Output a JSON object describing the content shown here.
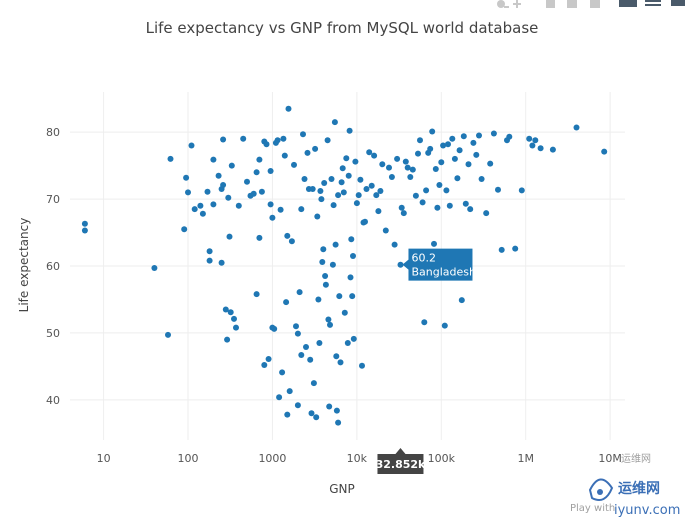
{
  "chart_data": {
    "type": "scatter",
    "title": "Life expectancy vs GNP from MySQL world database",
    "xlabel": "GNP",
    "ylabel": "Life expectancy",
    "x_scale": "log",
    "xlim": [
      4,
      15000000
    ],
    "ylim": [
      34,
      86
    ],
    "x_ticks": [
      {
        "value": 10,
        "label": "10"
      },
      {
        "value": 100,
        "label": "100"
      },
      {
        "value": 1000,
        "label": "1000"
      },
      {
        "value": 10000,
        "label": "10k"
      },
      {
        "value": 100000,
        "label": "100k"
      },
      {
        "value": 1000000,
        "label": "1M"
      },
      {
        "value": 10000000,
        "label": "10M"
      }
    ],
    "y_ticks": [
      40,
      50,
      60,
      70,
      80
    ],
    "grid": true,
    "color": "#1f77b4",
    "points": [
      [
        6,
        66.3
      ],
      [
        6,
        65.3
      ],
      [
        40,
        59.7
      ],
      [
        58,
        49.7
      ],
      [
        62,
        76
      ],
      [
        90,
        65.5
      ],
      [
        95,
        73.2
      ],
      [
        100,
        71
      ],
      [
        110,
        78
      ],
      [
        120,
        68.5
      ],
      [
        140,
        69
      ],
      [
        150,
        67.8
      ],
      [
        170,
        71.1
      ],
      [
        180,
        62.2
      ],
      [
        180,
        60.8
      ],
      [
        200,
        75.9
      ],
      [
        200,
        69.2
      ],
      [
        230,
        73.5
      ],
      [
        250,
        60.5
      ],
      [
        250,
        71.5
      ],
      [
        260,
        78.9
      ],
      [
        260,
        72.1
      ],
      [
        280,
        53.5
      ],
      [
        290,
        49
      ],
      [
        300,
        70.2
      ],
      [
        310,
        64.4
      ],
      [
        320,
        53.1
      ],
      [
        330,
        75
      ],
      [
        350,
        52.1
      ],
      [
        370,
        50.8
      ],
      [
        400,
        69
      ],
      [
        450,
        79
      ],
      [
        500,
        72.6
      ],
      [
        550,
        70.5
      ],
      [
        600,
        70.8
      ],
      [
        650,
        55.8
      ],
      [
        650,
        74
      ],
      [
        700,
        64.2
      ],
      [
        700,
        75.9
      ],
      [
        750,
        71.1
      ],
      [
        800,
        78.6
      ],
      [
        800,
        45.2
      ],
      [
        850,
        78.2
      ],
      [
        900,
        46.1
      ],
      [
        950,
        74.2
      ],
      [
        950,
        69.2
      ],
      [
        1000,
        50.8
      ],
      [
        1000,
        67.2
      ],
      [
        1050,
        50.6
      ],
      [
        1100,
        78.4
      ],
      [
        1150,
        78.8
      ],
      [
        1200,
        40.4
      ],
      [
        1250,
        68.4
      ],
      [
        1300,
        44.1
      ],
      [
        1350,
        79
      ],
      [
        1400,
        76.5
      ],
      [
        1450,
        54.6
      ],
      [
        1500,
        64.5
      ],
      [
        1500,
        37.8
      ],
      [
        1550,
        83.5
      ],
      [
        1600,
        41.3
      ],
      [
        1700,
        63.7
      ],
      [
        1800,
        75.1
      ],
      [
        1900,
        51
      ],
      [
        2000,
        39.2
      ],
      [
        2000,
        49.9
      ],
      [
        2100,
        56.1
      ],
      [
        2200,
        68.5
      ],
      [
        2200,
        46.7
      ],
      [
        2300,
        79.7
      ],
      [
        2400,
        73
      ],
      [
        2500,
        47.9
      ],
      [
        2600,
        76.9
      ],
      [
        2700,
        71.5
      ],
      [
        2800,
        46
      ],
      [
        2900,
        38
      ],
      [
        3000,
        71.5
      ],
      [
        3100,
        42.5
      ],
      [
        3200,
        77.5
      ],
      [
        3300,
        37.4
      ],
      [
        3400,
        67.4
      ],
      [
        3500,
        55
      ],
      [
        3600,
        48.5
      ],
      [
        3700,
        71.2
      ],
      [
        3800,
        70
      ],
      [
        3900,
        60.6
      ],
      [
        4000,
        62.5
      ],
      [
        4100,
        72.4
      ],
      [
        4200,
        58.5
      ],
      [
        4300,
        57.2
      ],
      [
        4500,
        78.8
      ],
      [
        4600,
        52
      ],
      [
        4700,
        39
      ],
      [
        4800,
        51.2
      ],
      [
        5000,
        73
      ],
      [
        5200,
        60.2
      ],
      [
        5300,
        69.1
      ],
      [
        5500,
        81.5
      ],
      [
        5600,
        63.2
      ],
      [
        5700,
        46.5
      ],
      [
        5800,
        38.4
      ],
      [
        6000,
        36.6
      ],
      [
        6000,
        70.6
      ],
      [
        6200,
        55.5
      ],
      [
        6400,
        45.6
      ],
      [
        6600,
        72.5
      ],
      [
        6800,
        74.6
      ],
      [
        7000,
        71
      ],
      [
        7200,
        53
      ],
      [
        7500,
        76.1
      ],
      [
        7800,
        48.5
      ],
      [
        8000,
        73.5
      ],
      [
        8200,
        80.2
      ],
      [
        8400,
        58.3
      ],
      [
        8600,
        64
      ],
      [
        8800,
        55.5
      ],
      [
        9000,
        61.5
      ],
      [
        9200,
        49.1
      ],
      [
        9600,
        75.6
      ],
      [
        10000,
        69.4
      ],
      [
        10500,
        70.6
      ],
      [
        11000,
        72.9
      ],
      [
        11500,
        45.1
      ],
      [
        12000,
        66.5
      ],
      [
        12500,
        66.6
      ],
      [
        13000,
        71.5
      ],
      [
        14000,
        77
      ],
      [
        15000,
        72
      ],
      [
        16000,
        76.5
      ],
      [
        17000,
        70.6
      ],
      [
        18000,
        68.2
      ],
      [
        19000,
        71.2
      ],
      [
        20000,
        75.2
      ],
      [
        22000,
        65.3
      ],
      [
        24000,
        74.7
      ],
      [
        26000,
        73.3
      ],
      [
        28000,
        63.2
      ],
      [
        30000,
        76
      ],
      [
        32852,
        60.2
      ],
      [
        34000,
        68.7
      ],
      [
        36000,
        67.9
      ],
      [
        38000,
        75.6
      ],
      [
        40000,
        74.7
      ],
      [
        43000,
        73.3
      ],
      [
        46000,
        74.4
      ],
      [
        50000,
        70.5
      ],
      [
        53000,
        76.8
      ],
      [
        56000,
        78.8
      ],
      [
        60000,
        69.5
      ],
      [
        63000,
        51.6
      ],
      [
        66000,
        71.3
      ],
      [
        70000,
        76.9
      ],
      [
        74000,
        77.5
      ],
      [
        78000,
        80.1
      ],
      [
        82000,
        63.3
      ],
      [
        86000,
        74.5
      ],
      [
        90000,
        68.7
      ],
      [
        95000,
        72.1
      ],
      [
        100000,
        75.5
      ],
      [
        105000,
        78
      ],
      [
        110000,
        51.1
      ],
      [
        115000,
        71.3
      ],
      [
        120000,
        78.2
      ],
      [
        126000,
        69
      ],
      [
        135000,
        79
      ],
      [
        145000,
        76
      ],
      [
        155000,
        73.1
      ],
      [
        165000,
        77.3
      ],
      [
        175000,
        54.9
      ],
      [
        185000,
        79.4
      ],
      [
        195000,
        69.3
      ],
      [
        210000,
        75.2
      ],
      [
        220000,
        68.5
      ],
      [
        240000,
        78.4
      ],
      [
        260000,
        76.6
      ],
      [
        280000,
        79.5
      ],
      [
        300000,
        73
      ],
      [
        340000,
        67.9
      ],
      [
        380000,
        75.3
      ],
      [
        420000,
        79.8
      ],
      [
        470000,
        71.4
      ],
      [
        520000,
        62.4
      ],
      [
        600000,
        78.8
      ],
      [
        640000,
        79.3
      ],
      [
        750000,
        62.6
      ],
      [
        900000,
        71.3
      ],
      [
        1100000,
        79
      ],
      [
        1200000,
        78
      ],
      [
        1300000,
        78.8
      ],
      [
        1500000,
        77.6
      ],
      [
        2100000,
        77.4
      ],
      [
        4000000,
        80.7
      ],
      [
        8500000,
        77.1
      ]
    ],
    "hover": {
      "x": 32852,
      "y": 60.2,
      "value_label": "60.2",
      "name": "Bangladesh",
      "x_readout": "32.852k"
    }
  },
  "watermark": {
    "play_text": "Play with",
    "logo_text": "运维网",
    "logo_sub": "iyunv.com",
    "faint_text": "运维网"
  }
}
